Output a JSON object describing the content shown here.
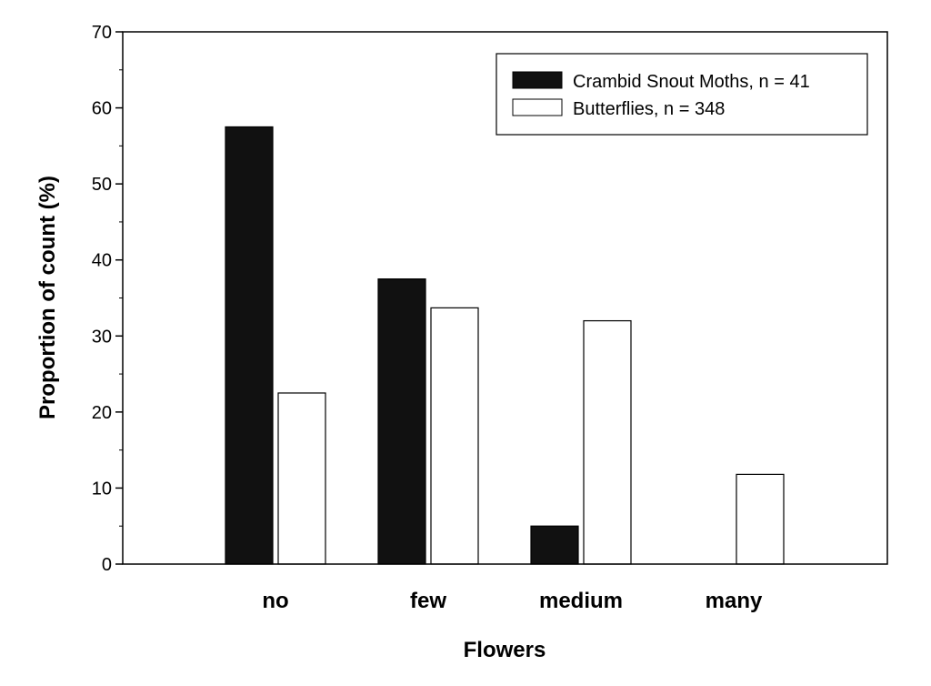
{
  "chart_data": {
    "type": "bar",
    "title": "",
    "xlabel": "Flowers",
    "ylabel": "Proportion of count (%)",
    "categories": [
      "no",
      "few",
      "medium",
      "many"
    ],
    "ylim": [
      0,
      70
    ],
    "yticks": [
      0,
      10,
      20,
      30,
      40,
      50,
      60,
      70
    ],
    "grid": false,
    "legend_position": "top-right",
    "series": [
      {
        "name": "Crambid Snout Moths, n = 41",
        "values": [
          57.5,
          37.5,
          5.0,
          0
        ],
        "color": "#111111"
      },
      {
        "name": "Butterflies, n = 348",
        "values": [
          22.5,
          33.7,
          32.0,
          11.8
        ],
        "color": "#ffffff"
      }
    ]
  }
}
